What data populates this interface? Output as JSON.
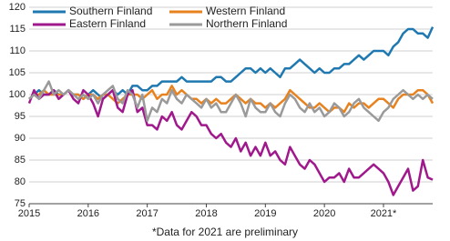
{
  "chart_data": {
    "type": "line",
    "footnote": "*Data for 2021 are preliminary",
    "categories": [
      "2015",
      null,
      null,
      null,
      null,
      null,
      null,
      null,
      null,
      null,
      null,
      null,
      "2016",
      null,
      null,
      null,
      null,
      null,
      null,
      null,
      null,
      null,
      null,
      null,
      "2017",
      null,
      null,
      null,
      null,
      null,
      null,
      null,
      null,
      null,
      null,
      null,
      "2018",
      null,
      null,
      null,
      null,
      null,
      null,
      null,
      null,
      null,
      null,
      null,
      "2019",
      null,
      null,
      null,
      null,
      null,
      null,
      null,
      null,
      null,
      null,
      null,
      "2020",
      null,
      null,
      null,
      null,
      null,
      null,
      null,
      null,
      null,
      null,
      null,
      "2021*",
      null,
      null,
      null,
      null,
      null,
      null,
      null,
      null,
      null,
      null
    ],
    "ylim": [
      75,
      120
    ],
    "yticks": [
      75,
      80,
      85,
      90,
      95,
      100,
      105,
      110,
      115,
      120
    ],
    "grid": true,
    "legend": "upper left",
    "series": [
      {
        "name": "Southern Finland",
        "color": "#1f79b0",
        "values": [
          99,
          100,
          101,
          100,
          100,
          101,
          100,
          100,
          101,
          100,
          100,
          99,
          100,
          101,
          100,
          99,
          100,
          101,
          100,
          101,
          100,
          102,
          102,
          101,
          101,
          102,
          102,
          103,
          103,
          103,
          103,
          104,
          103,
          103,
          103,
          103,
          103,
          103,
          104,
          104,
          103,
          103,
          104,
          105,
          106,
          106,
          105,
          106,
          105,
          106,
          105,
          104,
          106,
          106,
          107,
          108,
          107,
          106,
          105,
          106,
          105,
          105,
          106,
          106,
          107,
          107,
          108,
          109,
          108,
          109,
          110,
          110,
          110,
          109,
          111,
          112,
          114,
          115,
          115,
          114,
          114,
          113,
          115.5
        ]
      },
      {
        "name": "Western Finland",
        "color": "#e8821e",
        "values": [
          99,
          100,
          100,
          101,
          100,
          100,
          100,
          100,
          101,
          100,
          100,
          99,
          100,
          100,
          99,
          100,
          100,
          99,
          98,
          99,
          100,
          100,
          100,
          99,
          100,
          101,
          99,
          100,
          100,
          102,
          100,
          101,
          100,
          99,
          99,
          98,
          99,
          98,
          99,
          98,
          98,
          99,
          100,
          99,
          98,
          99,
          98,
          98,
          97,
          98,
          97,
          98,
          99,
          101,
          100,
          99,
          98,
          97,
          97,
          98,
          97,
          96,
          97,
          97,
          96,
          98,
          97,
          98,
          98,
          97,
          98,
          99,
          99,
          98,
          97,
          99,
          100,
          100,
          100,
          101,
          101,
          100,
          98
        ]
      },
      {
        "name": "Eastern Finland",
        "color": "#a0198c",
        "values": [
          98,
          101,
          99,
          100,
          100,
          101,
          99,
          100,
          101,
          99,
          98,
          101,
          100,
          98,
          95,
          99,
          100,
          101,
          97,
          96,
          100,
          101,
          96,
          97,
          93,
          93,
          92,
          95,
          94,
          96,
          93,
          92,
          94,
          96,
          95,
          93,
          93,
          91,
          90,
          91,
          89,
          88,
          90,
          87,
          89,
          86,
          88,
          86,
          89,
          86,
          87,
          85,
          84,
          88,
          86,
          84,
          83,
          85,
          84,
          82,
          80,
          81,
          81,
          82,
          80,
          83,
          81,
          81,
          82,
          83,
          84,
          83,
          82,
          80,
          77,
          79,
          81,
          83,
          78,
          79,
          85,
          81,
          80.5
        ]
      },
      {
        "name": "Northern Finland",
        "color": "#9a9a9a",
        "values": [
          99,
          100,
          99,
          101,
          103,
          100,
          101,
          100,
          101,
          100,
          99,
          100,
          99,
          100,
          98,
          100,
          101,
          102,
          99,
          98,
          101,
          100,
          97,
          100,
          94,
          97,
          96,
          99,
          98,
          101,
          99,
          98,
          100,
          99,
          98,
          97,
          99,
          97,
          98,
          96,
          96,
          98,
          100,
          98,
          95,
          99,
          97,
          96,
          96,
          98,
          96,
          95,
          98,
          100,
          99,
          97,
          96,
          98,
          96,
          97,
          95,
          96,
          98,
          97,
          95,
          96,
          98,
          99,
          97,
          96,
          95,
          94,
          96,
          97,
          99,
          100,
          101,
          100,
          99,
          100,
          99,
          100,
          99
        ]
      }
    ]
  }
}
